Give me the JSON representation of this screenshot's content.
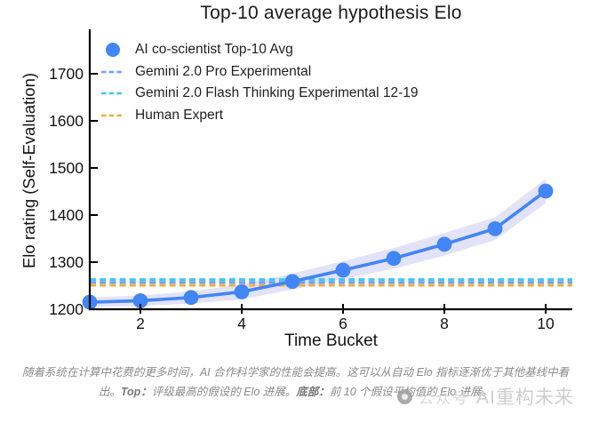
{
  "chart_data": {
    "type": "line",
    "title": "Top-10 average hypothesis Elo",
    "xlabel": "Time Bucket",
    "ylabel": "Elo rating (Self-Evaluation)",
    "x": [
      1,
      2,
      3,
      4,
      5,
      6,
      7,
      8,
      9,
      10
    ],
    "series": [
      {
        "name": "AI co-scientist Top-10 Avg",
        "values": [
          1215,
          1218,
          1225,
          1237,
          1259,
          1283,
          1308,
          1338,
          1371,
          1451
        ],
        "ci": [
          10,
          11,
          13,
          16,
          17,
          19,
          22,
          24,
          24,
          26
        ],
        "color": "#4285F4",
        "marker": "circle"
      }
    ],
    "baselines": [
      {
        "id": "flash",
        "name": "Gemini 2.0 Flash Thinking Experimental 12-19",
        "value": 1263,
        "color": "#3EC6F4",
        "style": "dashed"
      },
      {
        "id": "pro",
        "name": "Gemini 2.0 Pro Experimental",
        "value": 1257,
        "color": "#6FA0F6",
        "style": "dashed"
      },
      {
        "id": "human",
        "name": "Human Expert",
        "value": 1251,
        "color": "#F0AC3C",
        "style": "dashed"
      }
    ],
    "legend": [
      {
        "label": "AI co-scientist Top-10 Avg",
        "swatch": "circle",
        "color": "#4285F4"
      },
      {
        "label": "Gemini 2.0 Pro Experimental",
        "swatch": "dash",
        "color": "#6FA0F6"
      },
      {
        "label": "Gemini 2.0 Flash Thinking Experimental 12-19",
        "swatch": "dash",
        "color": "#3EC6F4"
      },
      {
        "label": "Human Expert",
        "swatch": "dash",
        "color": "#F0AC3C"
      }
    ],
    "yticks": [
      1200,
      1300,
      1400,
      1500,
      1600,
      1700
    ],
    "xticks": [
      2,
      4,
      6,
      8,
      10
    ],
    "xlim": [
      1,
      10.53
    ],
    "ylim": [
      1200,
      1795
    ],
    "grid": false,
    "legend_position": "top-left-inside",
    "band_color": "#E2E2F8",
    "axis_color": "#000000"
  },
  "caption": {
    "line1": "随着系统在计算中花费的更多时间，AI 合作科学家的性能会提高。这可以从自动 Elo 指标逐渐优于其他基线中看",
    "line2_pre": "出。",
    "line2_bold1": "Top：",
    "line2_text1": "评级最高的假设的 Elo 进展。",
    "line2_bold2": "底部：",
    "line2_text2": "前 10 个假设平均值的 Elo 进展。"
  },
  "watermark": {
    "label": "公众号",
    "brand": "AI重构未来"
  }
}
